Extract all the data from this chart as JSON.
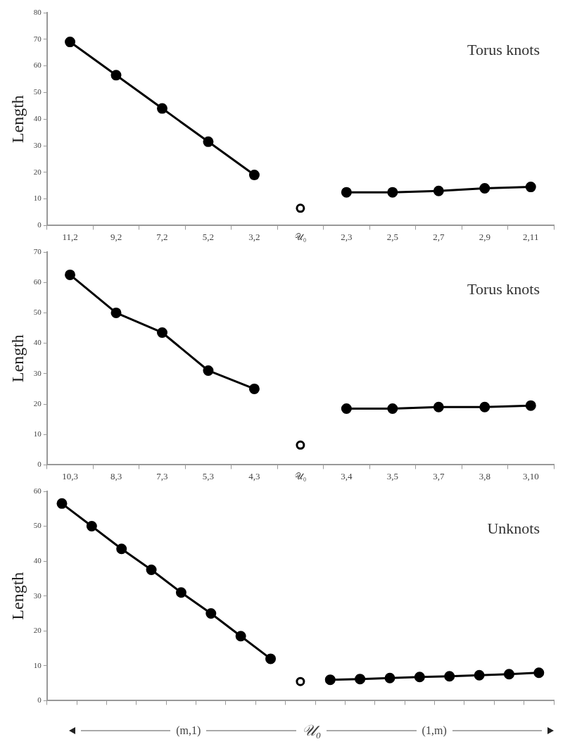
{
  "chart_data": [
    {
      "type": "line",
      "ylabel": "Length",
      "annotations": [
        "Torus knots"
      ],
      "categories": [
        "11,2",
        "9,2",
        "7,2",
        "5,2",
        "3,2",
        "𝒰₀",
        "2,3",
        "2,5",
        "2,7",
        "2,9",
        "2,11"
      ],
      "ylim": [
        0,
        80
      ],
      "yticks": [
        0,
        10,
        20,
        30,
        40,
        50,
        60,
        70,
        80
      ],
      "grid": false,
      "legend": false,
      "marker": "circle",
      "line_style": "solid",
      "series": [
        {
          "type": "line",
          "color": "#000000",
          "values": [
            69,
            56.5,
            44,
            31.5,
            19,
            null,
            null,
            null,
            null,
            null,
            null
          ]
        },
        {
          "type": "scatter",
          "color": "#000000",
          "values": [
            null,
            null,
            null,
            null,
            null,
            6.5,
            null,
            null,
            null,
            null,
            null
          ]
        },
        {
          "type": "line",
          "color": "#000000",
          "values": [
            null,
            null,
            null,
            null,
            null,
            null,
            12.5,
            12.5,
            13,
            14,
            14.5
          ]
        }
      ]
    },
    {
      "type": "line",
      "ylabel": "Length",
      "annotations": [
        "Torus knots"
      ],
      "categories": [
        "10,3",
        "8,3",
        "7,3",
        "5,3",
        "4,3",
        "𝒰₀",
        "3,4",
        "3,5",
        "3,7",
        "3,8",
        "3,10"
      ],
      "ylim": [
        0,
        70
      ],
      "yticks": [
        0,
        10,
        20,
        30,
        40,
        50,
        60,
        70
      ],
      "grid": false,
      "legend": false,
      "marker": "circle",
      "line_style": "solid",
      "series": [
        {
          "type": "line",
          "color": "#000000",
          "values": [
            62.5,
            50,
            43.5,
            31,
            25,
            null,
            null,
            null,
            null,
            null,
            null
          ]
        },
        {
          "type": "scatter",
          "color": "#000000",
          "values": [
            null,
            null,
            null,
            null,
            null,
            6.5,
            null,
            null,
            null,
            null,
            null
          ]
        },
        {
          "type": "line",
          "color": "#000000",
          "values": [
            null,
            null,
            null,
            null,
            null,
            null,
            18.5,
            18.5,
            19,
            19,
            19.5
          ]
        }
      ]
    },
    {
      "type": "line",
      "ylabel": "Length",
      "annotations": [
        "Unknots",
        "(m,1)",
        "𝒰₀",
        "(1,m)"
      ],
      "categories": [
        null,
        null,
        null,
        null,
        null,
        null,
        null,
        null,
        null,
        null,
        null,
        null,
        null,
        null,
        null,
        null,
        null
      ],
      "ylim": [
        0,
        60
      ],
      "yticks": [
        0,
        10,
        20,
        30,
        40,
        50,
        60
      ],
      "grid": false,
      "legend": false,
      "marker": "circle",
      "line_style": "solid",
      "series": [
        {
          "type": "line",
          "color": "#000000",
          "values": [
            56.5,
            50,
            43.5,
            37.5,
            31,
            25,
            18.5,
            12,
            null,
            null,
            null,
            null,
            null,
            null,
            null,
            null,
            null
          ]
        },
        {
          "type": "scatter",
          "color": "#000000",
          "values": [
            null,
            null,
            null,
            null,
            null,
            null,
            null,
            null,
            5.5,
            null,
            null,
            null,
            null,
            null,
            null,
            null,
            null
          ]
        },
        {
          "type": "line",
          "color": "#000000",
          "values": [
            null,
            null,
            null,
            null,
            null,
            null,
            null,
            null,
            null,
            6,
            6.2,
            6.5,
            6.8,
            7,
            7.3,
            7.6,
            8
          ]
        }
      ]
    }
  ]
}
